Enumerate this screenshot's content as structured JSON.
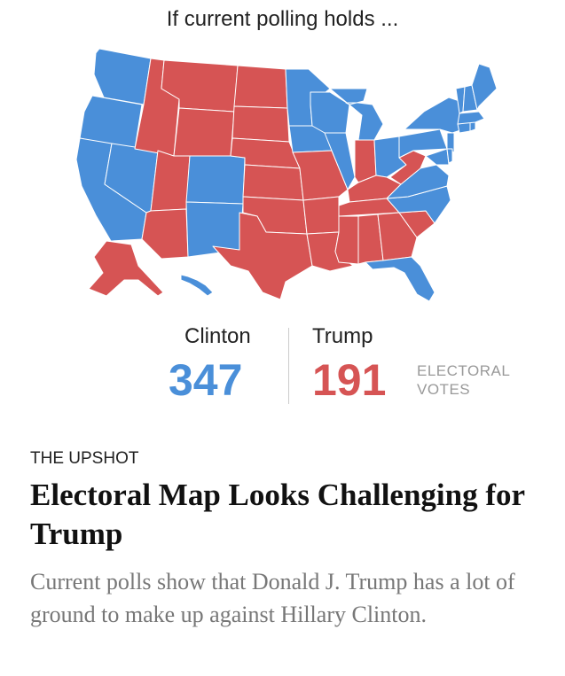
{
  "map": {
    "title": "If current polling holds ...",
    "colors": {
      "clinton": "#4a8fd9",
      "trump": "#d65454"
    },
    "states": [
      {
        "code": "WA",
        "party": "clinton"
      },
      {
        "code": "OR",
        "party": "clinton"
      },
      {
        "code": "CA",
        "party": "clinton"
      },
      {
        "code": "NV",
        "party": "clinton"
      },
      {
        "code": "ID",
        "party": "trump"
      },
      {
        "code": "MT",
        "party": "trump"
      },
      {
        "code": "WY",
        "party": "trump"
      },
      {
        "code": "UT",
        "party": "trump"
      },
      {
        "code": "AZ",
        "party": "trump"
      },
      {
        "code": "CO",
        "party": "clinton"
      },
      {
        "code": "NM",
        "party": "clinton"
      },
      {
        "code": "ND",
        "party": "trump"
      },
      {
        "code": "SD",
        "party": "trump"
      },
      {
        "code": "NE",
        "party": "trump"
      },
      {
        "code": "KS",
        "party": "trump"
      },
      {
        "code": "OK",
        "party": "trump"
      },
      {
        "code": "TX",
        "party": "trump"
      },
      {
        "code": "MN",
        "party": "clinton"
      },
      {
        "code": "IA",
        "party": "clinton"
      },
      {
        "code": "MO",
        "party": "trump"
      },
      {
        "code": "AR",
        "party": "trump"
      },
      {
        "code": "LA",
        "party": "trump"
      },
      {
        "code": "WI",
        "party": "clinton"
      },
      {
        "code": "IL",
        "party": "clinton"
      },
      {
        "code": "MI",
        "party": "clinton"
      },
      {
        "code": "IN",
        "party": "trump"
      },
      {
        "code": "OH",
        "party": "clinton"
      },
      {
        "code": "KY",
        "party": "trump"
      },
      {
        "code": "TN",
        "party": "trump"
      },
      {
        "code": "MS",
        "party": "trump"
      },
      {
        "code": "AL",
        "party": "trump"
      },
      {
        "code": "GA",
        "party": "trump"
      },
      {
        "code": "FL",
        "party": "clinton"
      },
      {
        "code": "SC",
        "party": "trump"
      },
      {
        "code": "NC",
        "party": "clinton"
      },
      {
        "code": "VA",
        "party": "clinton"
      },
      {
        "code": "WV",
        "party": "trump"
      },
      {
        "code": "PA",
        "party": "clinton"
      },
      {
        "code": "NY",
        "party": "clinton"
      },
      {
        "code": "NJ",
        "party": "clinton"
      },
      {
        "code": "MD",
        "party": "clinton"
      },
      {
        "code": "DE",
        "party": "clinton"
      },
      {
        "code": "CT",
        "party": "clinton"
      },
      {
        "code": "RI",
        "party": "clinton"
      },
      {
        "code": "MA",
        "party": "clinton"
      },
      {
        "code": "VT",
        "party": "clinton"
      },
      {
        "code": "NH",
        "party": "clinton"
      },
      {
        "code": "ME",
        "party": "clinton"
      },
      {
        "code": "AK",
        "party": "trump"
      },
      {
        "code": "HI",
        "party": "clinton"
      }
    ]
  },
  "tally": {
    "clinton": {
      "name": "Clinton",
      "votes": "347"
    },
    "trump": {
      "name": "Trump",
      "votes": "191"
    },
    "unit_line1": "ELECTORAL",
    "unit_line2": "VOTES"
  },
  "article": {
    "kicker": "THE UPSHOT",
    "headline": "Electoral Map Looks Challenging for Trump",
    "summary": "Current polls show that Donald J. Trump has a lot of ground to make up against Hillary Clinton."
  }
}
